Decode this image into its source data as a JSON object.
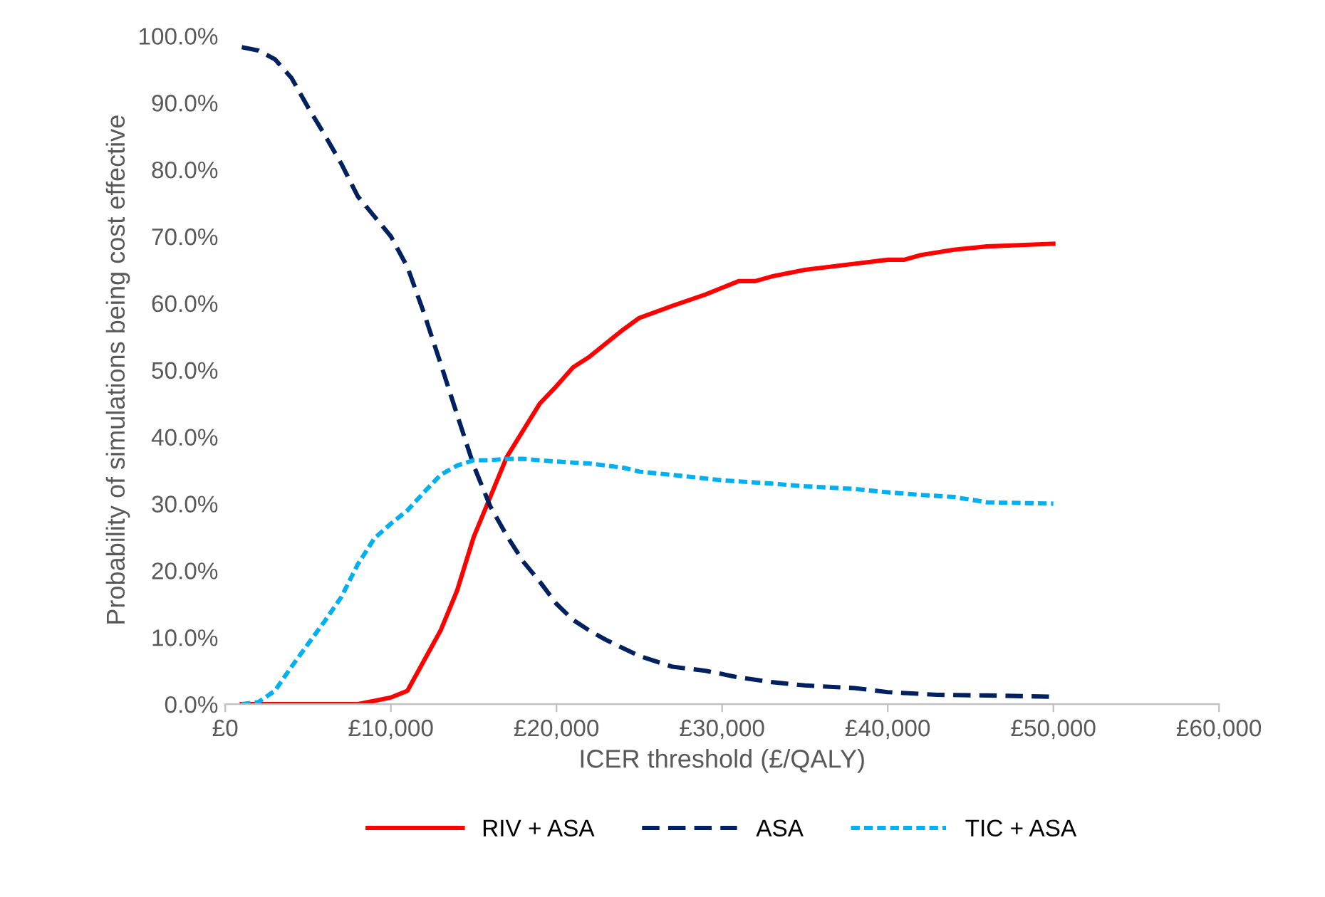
{
  "chart_data": {
    "type": "line",
    "xlabel": "ICER threshold (£/QALY)",
    "ylabel": "Probability of simulations being cost effective",
    "xlim": [
      0,
      60000
    ],
    "xticks": [
      {
        "value": 0,
        "label": "£0"
      },
      {
        "value": 10000,
        "label": "£10,000"
      },
      {
        "value": 20000,
        "label": "£20,000"
      },
      {
        "value": 30000,
        "label": "£30,000"
      },
      {
        "value": 40000,
        "label": "£40,000"
      },
      {
        "value": 50000,
        "label": "£50,000"
      },
      {
        "value": 60000,
        "label": "£60,000"
      }
    ],
    "ylim": [
      0,
      100
    ],
    "yticks": [
      {
        "value": 0,
        "label": "0.0%"
      },
      {
        "value": 10,
        "label": "10.0%"
      },
      {
        "value": 20,
        "label": "20.0%"
      },
      {
        "value": 30,
        "label": "30.0%"
      },
      {
        "value": 40,
        "label": "40.0%"
      },
      {
        "value": 50,
        "label": "50.0%"
      },
      {
        "value": 60,
        "label": "60.0%"
      },
      {
        "value": 70,
        "label": "70.0%"
      },
      {
        "value": 80,
        "label": "80.0%"
      },
      {
        "value": 90,
        "label": "90.0%"
      },
      {
        "value": 100,
        "label": "100.0%"
      }
    ],
    "grid": false,
    "legend": "bottom",
    "marker": "none",
    "series": [
      {
        "name": "RIV + ASA",
        "color": "#ff0000",
        "line_style": "solid",
        "x": [
          1000,
          4000,
          8000,
          9000,
          10000,
          11000,
          12000,
          13000,
          14000,
          15000,
          16000,
          17000,
          18000,
          19000,
          20000,
          21000,
          22000,
          23000,
          24000,
          25000,
          27000,
          29000,
          31000,
          32000,
          33000,
          35000,
          38000,
          40000,
          41000,
          42000,
          44000,
          46000,
          48000,
          50000
        ],
        "values": [
          0,
          0,
          0,
          0.5,
          1,
          2,
          6.5,
          11,
          17,
          25,
          31,
          37,
          41,
          45,
          47.6,
          50.4,
          52,
          54,
          56,
          57.8,
          59.6,
          61.3,
          63.3,
          63.3,
          64,
          65,
          65.9,
          66.5,
          66.5,
          67.2,
          68,
          68.5,
          68.7,
          68.9
        ]
      },
      {
        "name": "ASA",
        "color": "#002060",
        "line_style": "dashed",
        "x": [
          1000,
          2000,
          3000,
          4000,
          5000,
          6000,
          7000,
          8000,
          9000,
          10000,
          11000,
          12000,
          13000,
          14000,
          15000,
          16000,
          17000,
          18000,
          19000,
          20000,
          21000,
          22000,
          23000,
          25000,
          27000,
          29000,
          31000,
          33000,
          35000,
          38000,
          40000,
          43000,
          46000,
          50000
        ],
        "values": [
          98.3,
          97.8,
          96.5,
          93.7,
          89.3,
          85.2,
          80.9,
          76,
          73,
          70,
          65.4,
          58.5,
          51,
          43.3,
          35.7,
          29.6,
          25.2,
          21.3,
          18.3,
          15,
          12.6,
          11,
          9.6,
          7.2,
          5.6,
          5,
          4,
          3.3,
          2.8,
          2.4,
          1.8,
          1.4,
          1.3,
          1.1
        ]
      },
      {
        "name": "TIC + ASA",
        "color": "#00b0f0",
        "line_style": "dotted",
        "x": [
          1000,
          2000,
          3000,
          4000,
          5000,
          6000,
          7000,
          8000,
          9000,
          10000,
          11000,
          12000,
          13000,
          14000,
          15000,
          16000,
          17000,
          18000,
          20000,
          22000,
          24000,
          25000,
          27000,
          30000,
          33000,
          35000,
          38000,
          40000,
          42000,
          44000,
          46000,
          50000
        ],
        "values": [
          0,
          0.3,
          2,
          5.6,
          9,
          12.4,
          16,
          20.9,
          24.8,
          27,
          29,
          31.7,
          34.3,
          35.7,
          36.5,
          36.5,
          36.7,
          36.7,
          36.3,
          36,
          35.4,
          34.8,
          34.3,
          33.5,
          33,
          32.6,
          32.2,
          31.7,
          31.3,
          31,
          30.2,
          30
        ]
      }
    ]
  }
}
